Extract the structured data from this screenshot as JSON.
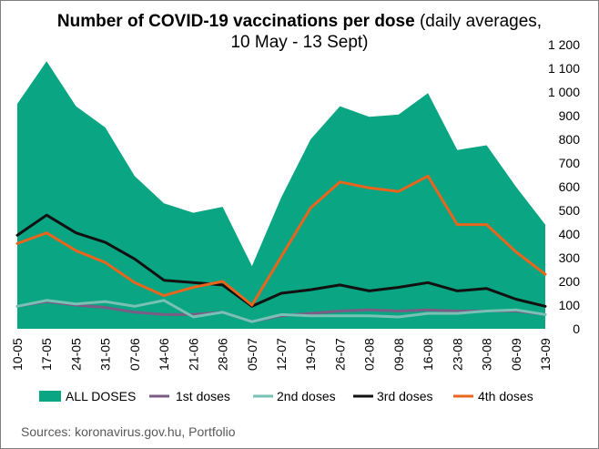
{
  "chart_data": {
    "type": "area",
    "title_bold": "Number of COVID-19 vaccinations per dose",
    "title_normal": " (daily averages,",
    "title_line2": "10 May - 13 Sept)",
    "source": "Sources: koronavirus.gov.hu, Portfolio",
    "categories": [
      "10-05",
      "17-05",
      "24-05",
      "31-05",
      "07-06",
      "14-06",
      "21-06",
      "28-06",
      "05-07",
      "12-07",
      "19-07",
      "26-07",
      "02-08",
      "09-08",
      "16-08",
      "23-08",
      "30-08",
      "06-09",
      "13-09"
    ],
    "ylim": [
      0,
      1200
    ],
    "yticks": [
      0,
      100,
      200,
      300,
      400,
      500,
      600,
      700,
      800,
      900,
      1000,
      1100,
      1200
    ],
    "ytick_labels": [
      "0",
      "100",
      "200",
      "300",
      "400",
      "500",
      "600",
      "700",
      "800",
      "900",
      "1 000",
      "1 100",
      "1 200"
    ],
    "y_axis_side": "right",
    "grid": false,
    "legend_position": "bottom",
    "series": [
      {
        "name": "ALL DOSES",
        "kind": "area",
        "color": "#0aa582",
        "values": [
          950,
          1130,
          940,
          850,
          645,
          530,
          490,
          515,
          265,
          555,
          800,
          940,
          895,
          905,
          995,
          755,
          775,
          600,
          440
        ]
      },
      {
        "name": "1st doses",
        "kind": "line",
        "color": "#7a5c85",
        "values": [
          95,
          115,
          100,
          90,
          70,
          60,
          60,
          70,
          30,
          55,
          65,
          75,
          80,
          75,
          80,
          75,
          75,
          75,
          60
        ]
      },
      {
        "name": "2nd doses",
        "kind": "line",
        "color": "#79c0b5",
        "values": [
          95,
          120,
          105,
          115,
          95,
          120,
          50,
          70,
          30,
          60,
          55,
          55,
          55,
          50,
          65,
          65,
          75,
          80,
          60
        ]
      },
      {
        "name": "3rd doses",
        "kind": "line",
        "color": "#111111",
        "values": [
          395,
          480,
          405,
          365,
          295,
          205,
          195,
          185,
          95,
          150,
          165,
          185,
          160,
          175,
          195,
          160,
          170,
          125,
          95
        ]
      },
      {
        "name": "4th doses",
        "kind": "line",
        "color": "#e8651e",
        "values": [
          360,
          405,
          330,
          280,
          195,
          140,
          175,
          200,
          100,
          305,
          510,
          620,
          595,
          580,
          645,
          440,
          440,
          325,
          230
        ]
      }
    ]
  }
}
